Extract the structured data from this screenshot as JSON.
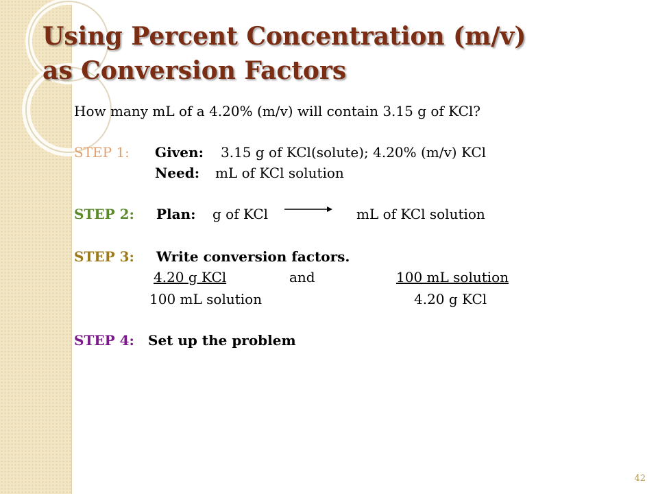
{
  "slide": {
    "title_line1": "Using Percent Concentration (m/v)",
    "title_line2": "as Conversion Factors",
    "question": "How many mL of a 4.20% (m/v) will contain 3.15 g of KCl?",
    "step1": {
      "label": "STEP 1:",
      "given_label": "Given:",
      "given_text": "3.15 g of KCl(solute); 4.20% (m/v) KCl",
      "need_label": "Need:",
      "need_text": "mL of KCl solution"
    },
    "step2": {
      "label": "STEP 2:",
      "plan_label": "Plan:",
      "from_text": "g of KCl",
      "to_text": "mL of KCl solution"
    },
    "step3": {
      "label": "STEP 3:",
      "heading": "Write conversion factors.",
      "factor1_numerator": "4.20 g KCl",
      "factor1_denominator": "100 mL solution",
      "and_text": "and",
      "factor2_numerator": "100 mL solution",
      "factor2_denominator": "4.20 g KCl"
    },
    "step4": {
      "label": "STEP 4:",
      "text": "Set up the problem"
    },
    "page_number": "42"
  },
  "colors": {
    "title": "#7a2d12",
    "step1": "#e0a070",
    "step2": "#5a8a2a",
    "step3": "#9a7a1a",
    "step4": "#7a1a8a",
    "sidebar": "#f3e6c4"
  }
}
